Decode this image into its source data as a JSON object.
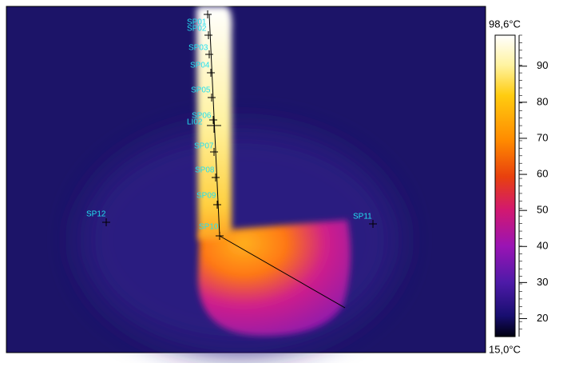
{
  "image": {
    "spots": [
      "SP01",
      "SP02",
      "SP03",
      "SP04",
      "SP05",
      "SP06",
      "SP07",
      "SP08",
      "SP09",
      "SP10",
      "SP11",
      "SP12"
    ],
    "line_label": "LI02"
  },
  "colorbar": {
    "max_label": "98,6°C",
    "min_label": "15,0°C",
    "range": [
      15.0,
      98.6
    ],
    "ticks": [
      20,
      30,
      40,
      50,
      60,
      70,
      80,
      90
    ]
  }
}
